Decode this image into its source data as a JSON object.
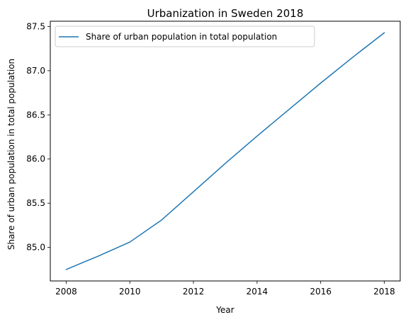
{
  "chart_data": {
    "type": "line",
    "title": "Urbanization in Sweden 2018",
    "xlabel": "Year",
    "ylabel": "Share of urban population in total population",
    "x": [
      2008,
      2009,
      2010,
      2011,
      2012,
      2013,
      2014,
      2015,
      2016,
      2017,
      2018
    ],
    "series": [
      {
        "name": "Share of urban population in total population",
        "values": [
          84.75,
          84.9,
          85.06,
          85.31,
          85.63,
          85.95,
          86.26,
          86.56,
          86.86,
          87.15,
          87.43
        ],
        "color": "#1f77b4"
      }
    ],
    "xticks": [
      2008,
      2010,
      2012,
      2014,
      2016,
      2018
    ],
    "xtick_labels": [
      "2008",
      "2010",
      "2012",
      "2014",
      "2016",
      "2018"
    ],
    "yticks": [
      85.0,
      85.5,
      86.0,
      86.5,
      87.0,
      87.5
    ],
    "ytick_labels": [
      "85.0",
      "85.5",
      "86.0",
      "86.5",
      "87.0",
      "87.5"
    ],
    "xlim": [
      2007.5,
      2018.5
    ],
    "ylim": [
      84.62,
      87.56
    ],
    "grid": false,
    "legend_position": "top-left"
  }
}
